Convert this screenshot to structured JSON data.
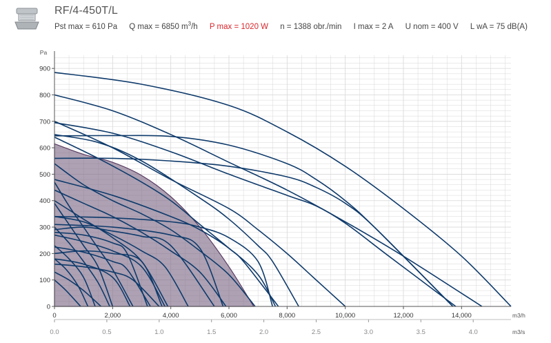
{
  "header": {
    "title": "RF/4-450T/L",
    "specs": {
      "pst": "Pst max = 610 Pa",
      "q_prefix": "Q max = 6850 m",
      "q_sup": "3",
      "q_suffix": "/h",
      "p": "P max = 1020 W",
      "n": "n = 1388 obr./min",
      "i": "I max = 2 A",
      "u": "U nom = 400 V",
      "l": "L wA = 75 dB(A)"
    }
  },
  "colors": {
    "curve": "#0e3a6b",
    "area_fill": "#7a6785",
    "area_stroke": "#5a3d63",
    "grid": "#d7d7d7",
    "accent_red": "#d9262c"
  },
  "icons": {
    "product": "roof-fan-icon"
  },
  "chart_data": {
    "type": "line",
    "ylabel": "Pa",
    "xlabel": "m3/h",
    "xlabel2": "m3/s",
    "xlim": [
      0,
      15700
    ],
    "ylim": [
      0,
      950
    ],
    "yticks": [
      0,
      100,
      200,
      300,
      400,
      500,
      600,
      700,
      800,
      900
    ],
    "xticks": [
      0,
      2000,
      4000,
      6000,
      8000,
      10000,
      12000,
      14000
    ],
    "xtick_labels": [
      "0",
      "2,000",
      "4,000",
      "6,000",
      "8,000",
      "10,000",
      "12,000",
      "14,000"
    ],
    "xticks2": [
      0.0,
      0.5,
      1.0,
      1.5,
      2.0,
      2.5,
      3.0,
      3.5,
      4.0
    ],
    "xtick2_labels": [
      "0.0",
      "0.5",
      "1.0",
      "1.5",
      "2.0",
      "2.5",
      "3.0",
      "3.5",
      "4.0"
    ],
    "grid": true,
    "area": {
      "name": "RF/4-450T/L",
      "x": [
        0,
        1000,
        2000,
        3000,
        4000,
        5000,
        6000,
        6850
      ],
      "y": [
        615,
        575,
        545,
        495,
        415,
        300,
        150,
        0
      ]
    },
    "series": [
      {
        "x": [
          0,
          3000,
          6000,
          8000,
          10000,
          12000,
          14000,
          15700
        ],
        "y": [
          885,
          840,
          760,
          660,
          530,
          370,
          190,
          0
        ]
      },
      {
        "x": [
          0,
          2000,
          4000,
          6000,
          8000,
          10000,
          12000,
          14700
        ],
        "y": [
          800,
          740,
          650,
          545,
          440,
          320,
          190,
          0
        ]
      },
      {
        "x": [
          0,
          2000,
          4000,
          6000,
          8000,
          9000,
          10000,
          11500,
          13800
        ],
        "y": [
          695,
          655,
          585,
          500,
          420,
          380,
          315,
          190,
          0
        ]
      },
      {
        "x": [
          0,
          2000,
          4000,
          6000,
          8000,
          9000,
          10000,
          11000,
          13700
        ],
        "y": [
          645,
          646,
          643,
          610,
          540,
          480,
          400,
          300,
          0
        ]
      },
      {
        "x": [
          0,
          2000,
          4000,
          6000,
          8000,
          9000,
          10000,
          11000,
          13700
        ],
        "y": [
          560,
          560,
          550,
          530,
          490,
          450,
          390,
          300,
          0
        ]
      },
      {
        "x": [
          0,
          2000,
          4000,
          6000,
          7000,
          8000,
          8900,
          10000
        ],
        "y": [
          700,
          600,
          480,
          370,
          290,
          200,
          110,
          0
        ]
      },
      {
        "x": [
          0,
          1500,
          3000,
          5000,
          6000,
          7000,
          7500,
          8400
        ],
        "y": [
          650,
          620,
          550,
          410,
          330,
          230,
          170,
          0
        ]
      },
      {
        "x": [
          0,
          1500,
          3000,
          4000,
          5000,
          6000,
          6500,
          7700
        ],
        "y": [
          640,
          560,
          470,
          400,
          310,
          220,
          170,
          0
        ]
      },
      {
        "x": [
          0,
          1000,
          2000,
          3000,
          4000,
          5000,
          6000,
          6900
        ],
        "y": [
          540,
          460,
          400,
          350,
          290,
          210,
          120,
          0
        ]
      },
      {
        "x": [
          0,
          2000,
          4000,
          5000,
          6000,
          7000,
          7600
        ],
        "y": [
          480,
          420,
          340,
          290,
          220,
          120,
          0
        ]
      },
      {
        "x": [
          0,
          1000,
          2000,
          3000,
          4000,
          5000,
          5900
        ],
        "y": [
          440,
          390,
          340,
          280,
          210,
          130,
          0
        ]
      },
      {
        "x": [
          0,
          2000,
          4000,
          5000,
          6000,
          7000,
          7500
        ],
        "y": [
          340,
          335,
          320,
          300,
          260,
          170,
          0
        ]
      },
      {
        "x": [
          0,
          2000,
          4000,
          5000,
          5800
        ],
        "y": [
          310,
          300,
          270,
          220,
          0
        ]
      },
      {
        "x": [
          0,
          1000,
          2000,
          3000,
          4000,
          5500
        ],
        "y": [
          290,
          300,
          285,
          265,
          230,
          0
        ]
      },
      {
        "x": [
          0,
          1000,
          2000,
          3000,
          3800,
          4600
        ],
        "y": [
          340,
          320,
          270,
          210,
          150,
          0
        ]
      },
      {
        "x": [
          0,
          1000,
          2000,
          3000,
          3900
        ],
        "y": [
          400,
          330,
          260,
          170,
          0
        ]
      },
      {
        "x": [
          0,
          1000,
          2000,
          3000,
          3800
        ],
        "y": [
          270,
          245,
          210,
          150,
          0
        ]
      },
      {
        "x": [
          0,
          1000,
          2000,
          2500,
          3300
        ],
        "y": [
          225,
          205,
          170,
          140,
          0
        ]
      },
      {
        "x": [
          0,
          1000,
          2000,
          2600
        ],
        "y": [
          180,
          160,
          110,
          0
        ]
      },
      {
        "x": [
          0,
          500,
          1000,
          1500,
          2000,
          2700
        ],
        "y": [
          470,
          380,
          300,
          220,
          140,
          0
        ]
      },
      {
        "x": [
          0,
          500,
          1000,
          1500,
          2000
        ],
        "y": [
          390,
          310,
          230,
          150,
          0
        ]
      },
      {
        "x": [
          0,
          500,
          1000,
          1500,
          1900
        ],
        "y": [
          300,
          240,
          170,
          90,
          0
        ]
      },
      {
        "x": [
          0,
          500,
          1000,
          1400
        ],
        "y": [
          230,
          180,
          110,
          0
        ]
      },
      {
        "x": [
          0,
          400,
          800,
          1150
        ],
        "y": [
          180,
          140,
          80,
          0
        ]
      },
      {
        "x": [
          0,
          1000,
          2000,
          2500,
          3200
        ],
        "y": [
          280,
          270,
          240,
          200,
          0
        ]
      },
      {
        "x": [
          0,
          1000,
          2000,
          3000,
          3700
        ],
        "y": [
          200,
          210,
          200,
          170,
          0
        ]
      },
      {
        "x": [
          0,
          1000,
          2000,
          2700,
          3600
        ],
        "y": [
          160,
          150,
          130,
          100,
          0
        ]
      },
      {
        "x": [
          0,
          500,
          1000,
          1600
        ],
        "y": [
          130,
          100,
          60,
          0
        ]
      },
      {
        "x": [
          0,
          400,
          900
        ],
        "y": [
          100,
          60,
          0
        ]
      }
    ]
  }
}
